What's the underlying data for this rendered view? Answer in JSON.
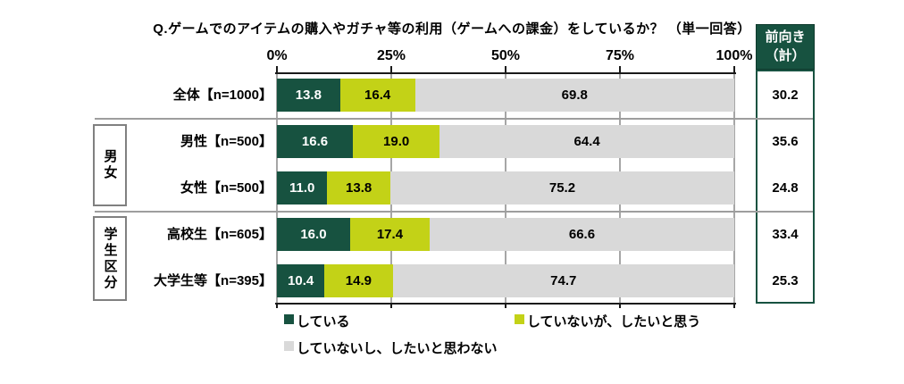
{
  "title": "Q.ゲームでのアイテムの購入やガチャ等の利用（ゲームへの課金）をしているか？ （単一回答）",
  "axis_ticks": [
    "0%",
    "25%",
    "50%",
    "75%",
    "100%"
  ],
  "groups": [
    {
      "label": "男女"
    },
    {
      "label": "学生区分"
    }
  ],
  "summary": {
    "header_line1": "前向き",
    "header_line2": "（計）",
    "values": [
      "30.2",
      "35.6",
      "24.8",
      "33.4",
      "25.3"
    ]
  },
  "legend": [
    {
      "label": "している",
      "color": "#175240"
    },
    {
      "label": "していないが、したいと思う",
      "color": "#c3d217"
    },
    {
      "label": "していないし、したいと思わない",
      "color": "#d9d9d9"
    }
  ],
  "chart_data": {
    "type": "bar",
    "orientation": "horizontal",
    "stacked": true,
    "title": "Q.ゲームでのアイテムの購入やガチャ等の利用（ゲームへの課金）をしているか？ （単一回答）",
    "categories": [
      "全体【n=1000】",
      "男性【n=500】",
      "女性【n=500】",
      "高校生【n=605】",
      "大学生等【n=395】"
    ],
    "series": [
      {
        "name": "している",
        "color": "#175240",
        "text_color": "#ffffff",
        "values": [
          13.8,
          16.6,
          11.0,
          16.0,
          10.4
        ]
      },
      {
        "name": "していないが、したいと思う",
        "color": "#c3d217",
        "text_color": "#000000",
        "values": [
          16.4,
          19.0,
          13.8,
          17.4,
          14.9
        ]
      },
      {
        "name": "していないし、したいと思わない",
        "color": "#d9d9d9",
        "text_color": "#000000",
        "values": [
          69.8,
          64.4,
          75.2,
          66.6,
          74.7
        ]
      }
    ],
    "xlim": [
      0,
      100
    ],
    "x_ticks": [
      "0%",
      "25%",
      "50%",
      "75%",
      "100%"
    ],
    "grid": true,
    "legend_position": "bottom",
    "summary_column": {
      "header": "前向き（計）",
      "values": [
        30.2,
        35.6,
        24.8,
        33.4,
        25.3
      ]
    },
    "group_brackets": [
      {
        "label": "男女",
        "rows": [
          1,
          2
        ]
      },
      {
        "label": "学生区分",
        "rows": [
          3,
          4
        ]
      }
    ]
  }
}
